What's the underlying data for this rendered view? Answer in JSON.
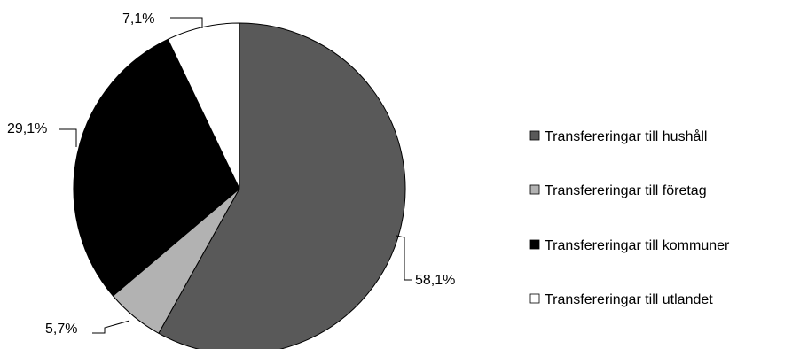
{
  "chart_data": {
    "type": "pie",
    "title": "",
    "slices": [
      {
        "label": "Transfereringar till hushåll",
        "value": 58.1,
        "value_label": "58,1%",
        "color": "#595959"
      },
      {
        "label": "Transfereringar till företag",
        "value": 5.7,
        "value_label": "5,7%",
        "color": "#b2b2b2"
      },
      {
        "label": "Transfereringar till kommuner",
        "value": 29.1,
        "value_label": "29,1%",
        "color": "#000000"
      },
      {
        "label": "Transfereringar till utlandet",
        "value": 7.1,
        "value_label": "7,1%",
        "color": "#ffffff"
      }
    ],
    "start_angle": "12 o'clock",
    "direction": "clockwise",
    "legend_position": "right"
  }
}
